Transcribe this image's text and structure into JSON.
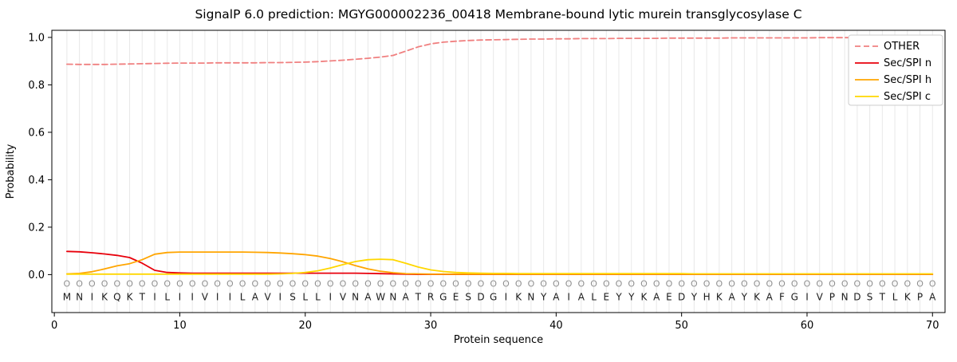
{
  "chart_data": {
    "type": "line",
    "title": "SignalP 6.0 prediction: MGYG000002236_00418 Membrane-bound lytic murein transglycosylase C",
    "xlabel": "Protein sequence",
    "ylabel": "Probability",
    "xlim": [
      -0.2,
      71.0
    ],
    "ylim": [
      -0.16,
      1.03
    ],
    "grid": true,
    "legend_position": "upper right",
    "xticks": [
      0,
      10,
      20,
      30,
      40,
      50,
      60,
      70
    ],
    "xtick_labels": [
      "0",
      "10",
      "20",
      "30",
      "40",
      "50",
      "60",
      "70"
    ],
    "yticks": [
      0.0,
      0.2,
      0.4,
      0.6,
      0.8,
      1.0
    ],
    "ytick_labels": [
      "0.0",
      "0.2",
      "0.4",
      "0.6",
      "0.8",
      "1.0"
    ],
    "sequence": "MNIKQKTILIIVIILAVISLLIVNAWNATRGESDGIKNYAIALEYYKAEDYHKAYKAFGIVPNDSTLKPA",
    "position_labels": "OOOOOOOOOOOOOOOOOOOOOOOOOOOOOOOOOOOOOOOOOOOOOOOOOOOOOOOOOOOOOOOOOOOOOO",
    "x": [
      1,
      2,
      3,
      4,
      5,
      6,
      7,
      8,
      9,
      10,
      11,
      12,
      13,
      14,
      15,
      16,
      17,
      18,
      19,
      20,
      21,
      22,
      23,
      24,
      25,
      26,
      27,
      28,
      29,
      30,
      31,
      32,
      33,
      34,
      35,
      36,
      37,
      38,
      39,
      40,
      41,
      42,
      43,
      44,
      45,
      46,
      47,
      48,
      49,
      50,
      51,
      52,
      53,
      54,
      55,
      56,
      57,
      58,
      59,
      60,
      61,
      62,
      63,
      64,
      65,
      66,
      67,
      68,
      69,
      70
    ],
    "series": [
      {
        "name": "OTHER",
        "color": "#f08080",
        "dash": true,
        "values": [
          0.887,
          0.886,
          0.886,
          0.886,
          0.887,
          0.888,
          0.889,
          0.89,
          0.891,
          0.892,
          0.892,
          0.892,
          0.893,
          0.893,
          0.893,
          0.893,
          0.894,
          0.894,
          0.895,
          0.896,
          0.898,
          0.901,
          0.904,
          0.908,
          0.912,
          0.917,
          0.924,
          0.942,
          0.96,
          0.973,
          0.98,
          0.984,
          0.987,
          0.989,
          0.99,
          0.991,
          0.992,
          0.993,
          0.993,
          0.994,
          0.994,
          0.995,
          0.995,
          0.995,
          0.996,
          0.996,
          0.996,
          0.996,
          0.997,
          0.997,
          0.997,
          0.997,
          0.997,
          0.998,
          0.998,
          0.998,
          0.998,
          0.998,
          0.998,
          0.998,
          0.999,
          0.999,
          0.999,
          0.999,
          0.999,
          0.999,
          0.999,
          0.999,
          0.999,
          0.999
        ]
      },
      {
        "name": "Sec/SPI n",
        "color": "#e8000b",
        "dash": false,
        "values": [
          0.098,
          0.096,
          0.092,
          0.087,
          0.081,
          0.072,
          0.048,
          0.018,
          0.009,
          0.007,
          0.006,
          0.006,
          0.006,
          0.006,
          0.006,
          0.006,
          0.006,
          0.006,
          0.006,
          0.006,
          0.006,
          0.006,
          0.006,
          0.006,
          0.005,
          0.004,
          0.003,
          0.002,
          0.001,
          0.001,
          0.001,
          0.001,
          0.001,
          0.001,
          0.001,
          0.001,
          0.001,
          0.001,
          0.001,
          0.001,
          0.001,
          0.001,
          0.001,
          0.001,
          0.001,
          0.001,
          0.001,
          0.001,
          0.001,
          0.001,
          0.001,
          0.001,
          0.001,
          0.001,
          0.001,
          0.001,
          0.001,
          0.001,
          0.001,
          0.001,
          0.001,
          0.001,
          0.001,
          0.001,
          0.001,
          0.001,
          0.001,
          0.001,
          0.001,
          0.001
        ]
      },
      {
        "name": "Sec/SPI h",
        "color": "#ffa500",
        "dash": false,
        "values": [
          0.003,
          0.005,
          0.012,
          0.024,
          0.037,
          0.046,
          0.063,
          0.086,
          0.093,
          0.095,
          0.095,
          0.095,
          0.095,
          0.095,
          0.095,
          0.094,
          0.093,
          0.091,
          0.088,
          0.084,
          0.078,
          0.068,
          0.054,
          0.038,
          0.024,
          0.014,
          0.008,
          0.004,
          0.003,
          0.002,
          0.002,
          0.002,
          0.002,
          0.002,
          0.002,
          0.002,
          0.002,
          0.002,
          0.002,
          0.002,
          0.002,
          0.002,
          0.002,
          0.002,
          0.002,
          0.002,
          0.002,
          0.002,
          0.002,
          0.002,
          0.002,
          0.002,
          0.002,
          0.002,
          0.002,
          0.002,
          0.002,
          0.002,
          0.002,
          0.002,
          0.002,
          0.002,
          0.002,
          0.002,
          0.002,
          0.002,
          0.002,
          0.002,
          0.002,
          0.002
        ]
      },
      {
        "name": "Sec/SPI c",
        "color": "#ffd700",
        "dash": false,
        "values": [
          0.002,
          0.002,
          0.002,
          0.002,
          0.002,
          0.002,
          0.002,
          0.002,
          0.002,
          0.002,
          0.002,
          0.002,
          0.002,
          0.002,
          0.002,
          0.002,
          0.002,
          0.003,
          0.005,
          0.009,
          0.016,
          0.028,
          0.042,
          0.055,
          0.063,
          0.065,
          0.063,
          0.048,
          0.032,
          0.02,
          0.013,
          0.009,
          0.007,
          0.006,
          0.005,
          0.005,
          0.004,
          0.004,
          0.004,
          0.004,
          0.004,
          0.004,
          0.004,
          0.004,
          0.004,
          0.004,
          0.004,
          0.004,
          0.004,
          0.004,
          0.003,
          0.003,
          0.003,
          0.003,
          0.003,
          0.003,
          0.003,
          0.003,
          0.003,
          0.003,
          0.003,
          0.003,
          0.003,
          0.003,
          0.003,
          0.003,
          0.003,
          0.003,
          0.003,
          0.003
        ]
      }
    ]
  }
}
